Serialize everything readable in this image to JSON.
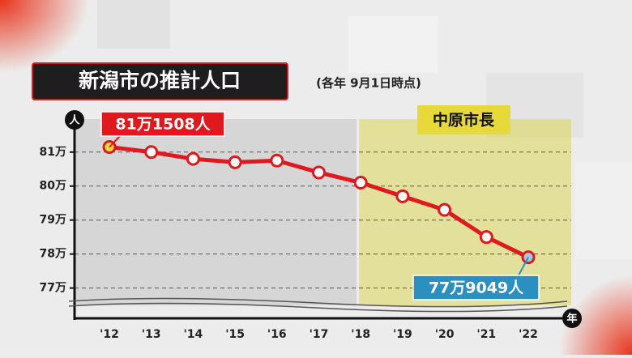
{
  "chart_data": {
    "type": "line",
    "title": "新潟市の推計人口",
    "subtitle": "(各年 9月1日時点)",
    "y_unit": "人",
    "x_unit": "年",
    "categories": [
      "'12",
      "'13",
      "'14",
      "'15",
      "'16",
      "'17",
      "'18",
      "'19",
      "'20",
      "'21",
      "'22"
    ],
    "values": [
      81.1508,
      81.0,
      80.8,
      80.7,
      80.75,
      80.4,
      80.1,
      79.7,
      79.3,
      78.5,
      77.9049
    ],
    "value_labels": [
      "81万1508人",
      null,
      null,
      null,
      null,
      null,
      null,
      null,
      null,
      null,
      "77万9049人"
    ],
    "color": "#e0191e",
    "ylim": [
      76.3,
      81.9
    ],
    "yticks": [
      {
        "value": 77,
        "label": "77万"
      },
      {
        "value": 78,
        "label": "78万"
      },
      {
        "value": 79,
        "label": "79万"
      },
      {
        "value": 80,
        "label": "80万"
      },
      {
        "value": 81,
        "label": "81万"
      }
    ],
    "grid": true,
    "annotations": [
      {
        "text": "中原市長",
        "start": "'18"
      }
    ]
  }
}
